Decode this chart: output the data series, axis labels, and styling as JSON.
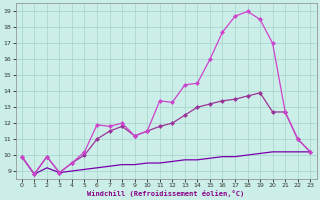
{
  "xlabel": "Windchill (Refroidissement éolien,°C)",
  "background_color": "#cceee8",
  "grid_color": "#aad8d0",
  "xlim": [
    -0.5,
    23.5
  ],
  "ylim": [
    8.5,
    19.5
  ],
  "yticks": [
    9,
    10,
    11,
    12,
    13,
    14,
    15,
    16,
    17,
    18,
    19
  ],
  "xticks": [
    0,
    1,
    2,
    3,
    4,
    5,
    6,
    7,
    8,
    9,
    10,
    11,
    12,
    13,
    14,
    15,
    16,
    17,
    18,
    19,
    20,
    21,
    22,
    23
  ],
  "line_a_x": [
    0,
    1,
    2,
    3,
    4,
    5,
    6,
    7,
    8,
    9,
    10,
    11,
    12,
    13,
    14,
    15,
    16,
    17,
    18,
    19,
    20,
    21,
    22,
    23
  ],
  "line_a_y": [
    9.9,
    8.8,
    9.9,
    8.9,
    9.5,
    10.2,
    11.9,
    11.8,
    12.0,
    11.2,
    11.5,
    13.4,
    13.3,
    14.4,
    14.5,
    16.0,
    17.7,
    18.7,
    19.0,
    18.5,
    17.0,
    12.7,
    11.0,
    10.2
  ],
  "line_b_x": [
    0,
    1,
    2,
    3,
    4,
    5,
    6,
    7,
    8,
    9,
    10,
    11,
    12,
    13,
    14,
    15,
    16,
    17,
    18,
    19,
    20,
    21,
    22,
    23
  ],
  "line_b_y": [
    9.9,
    8.8,
    9.9,
    8.9,
    9.5,
    10.0,
    11.0,
    11.5,
    11.8,
    11.2,
    11.5,
    11.8,
    12.0,
    12.5,
    13.0,
    13.2,
    13.4,
    13.5,
    13.7,
    13.9,
    12.7,
    12.7,
    11.0,
    10.2
  ],
  "line_c_x": [
    0,
    1,
    2,
    3,
    4,
    5,
    6,
    7,
    8,
    9,
    10,
    11,
    12,
    13,
    14,
    15,
    16,
    17,
    18,
    19,
    20,
    21,
    22,
    23
  ],
  "line_c_y": [
    9.9,
    8.8,
    9.2,
    8.9,
    9.0,
    9.1,
    9.2,
    9.3,
    9.4,
    9.4,
    9.5,
    9.5,
    9.6,
    9.7,
    9.7,
    9.8,
    9.9,
    9.9,
    10.0,
    10.1,
    10.2,
    10.2,
    10.2,
    10.2
  ],
  "color_a": "#cc44cc",
  "color_b": "#993399",
  "color_c": "#7700aa",
  "marker_a": "D",
  "marker_b": "D",
  "linewidth": 0.9,
  "markersize": 2.5
}
